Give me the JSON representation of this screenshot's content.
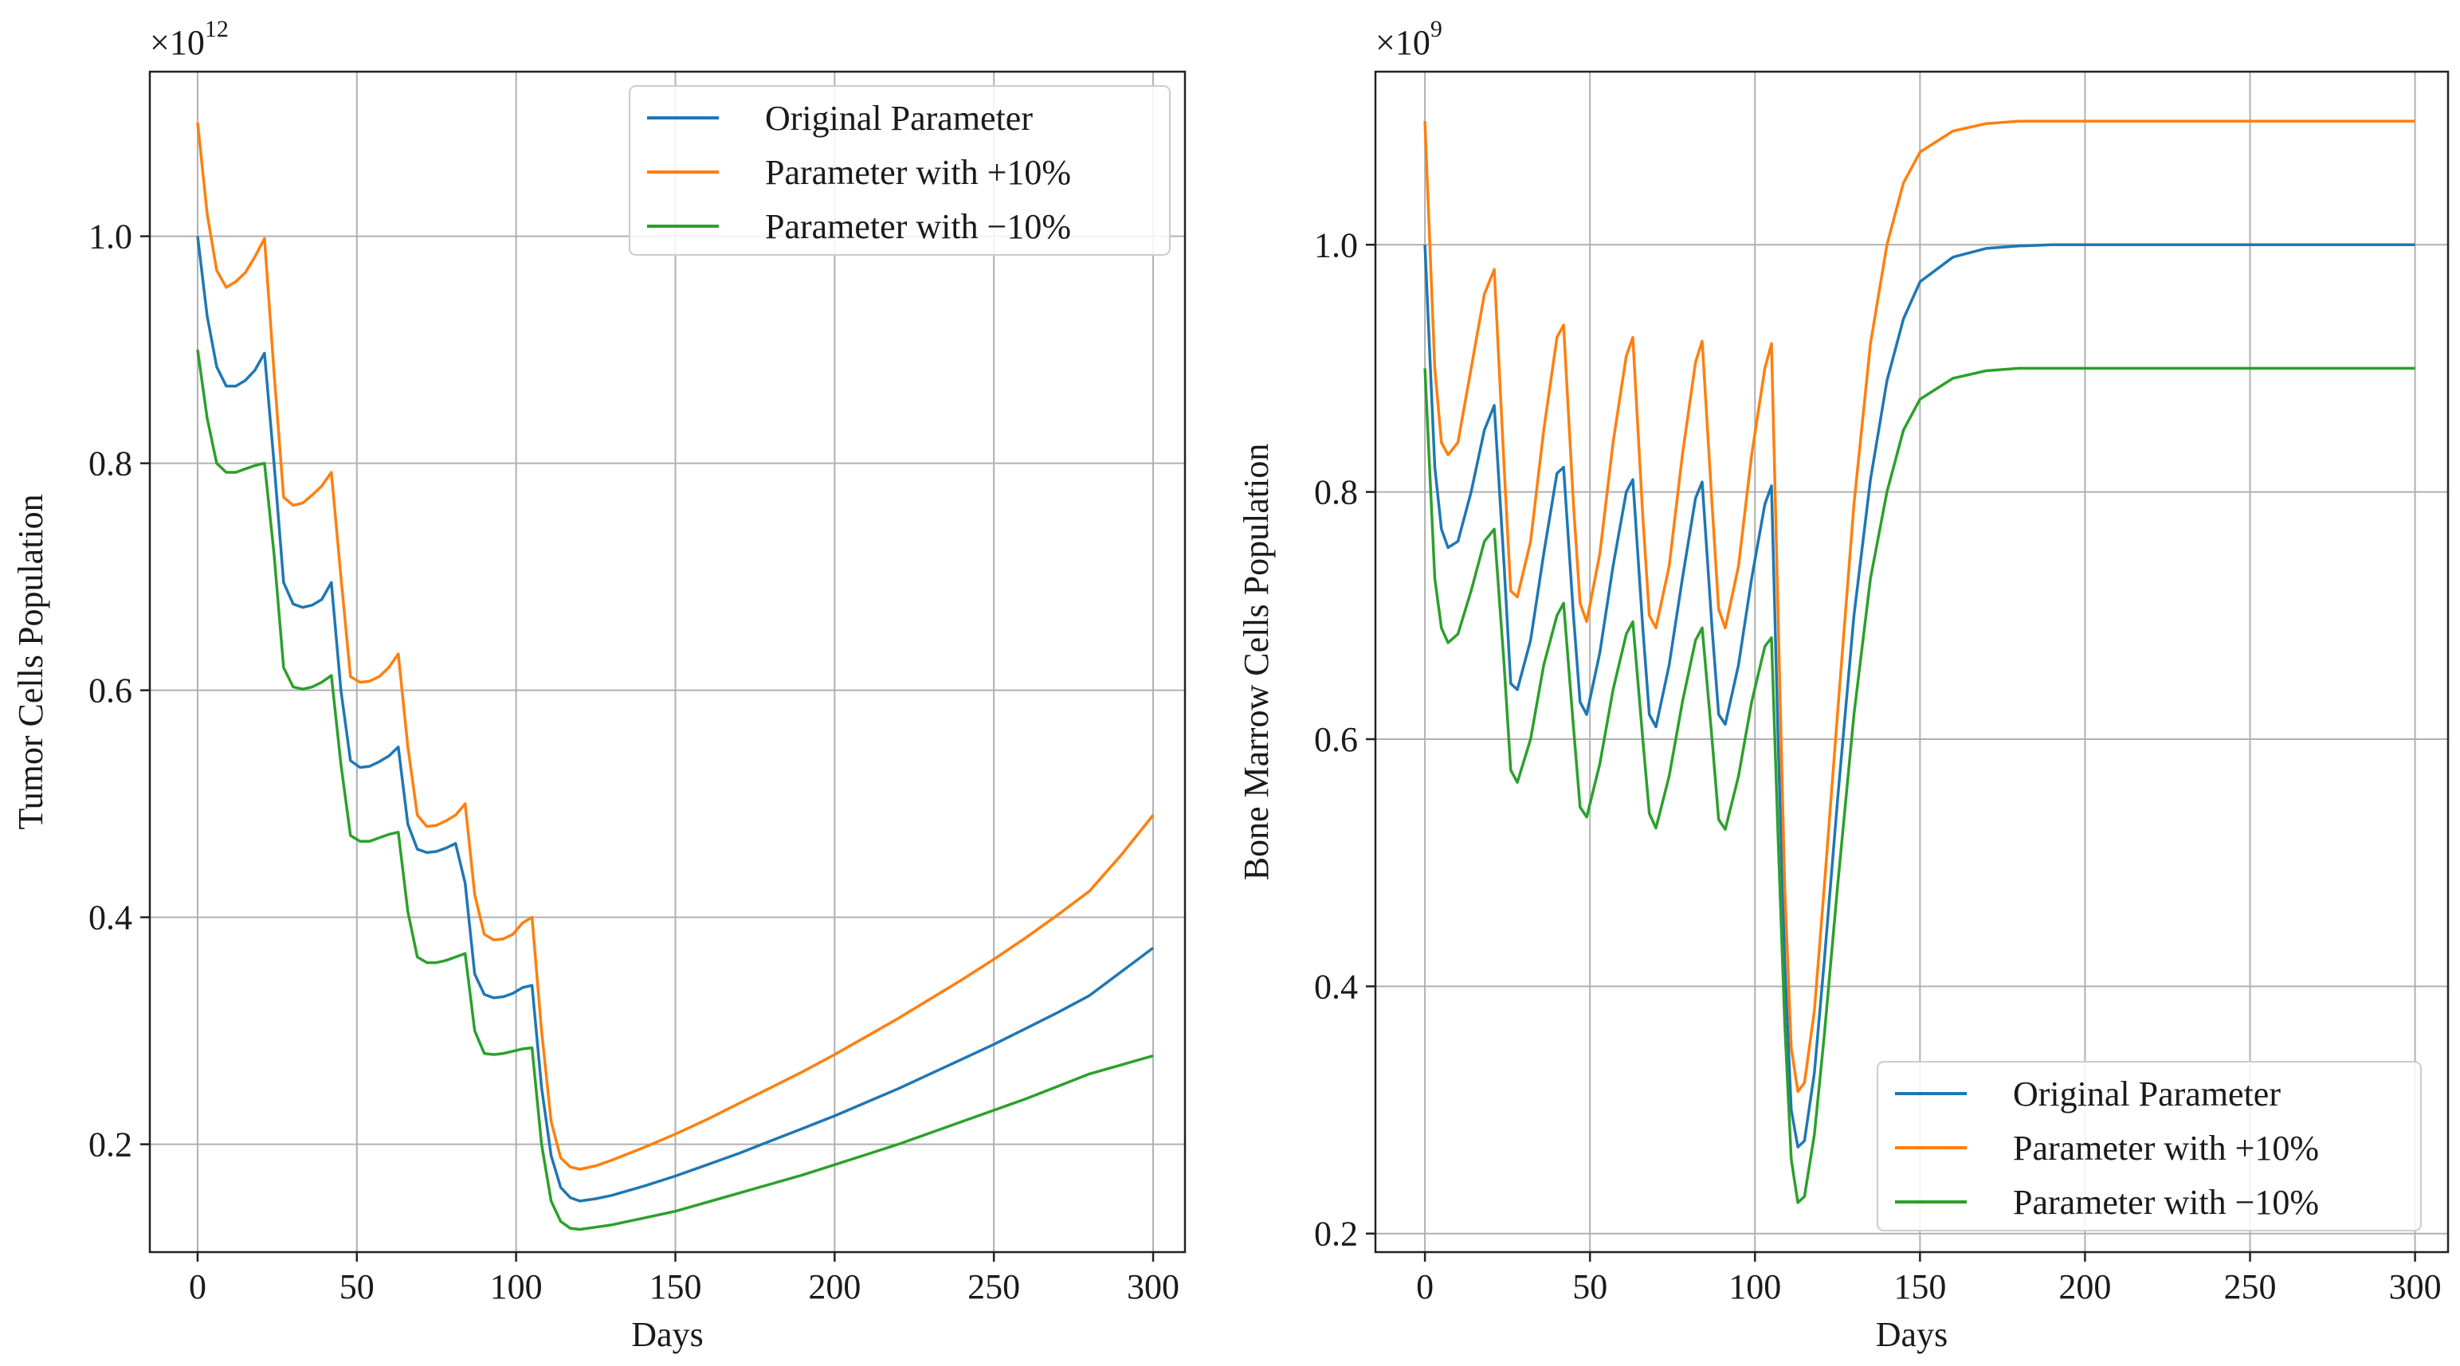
{
  "chart_data": [
    {
      "type": "line",
      "title": "",
      "xlabel": "Days",
      "ylabel": "Tumor Cells Population",
      "scale_label": "×10",
      "scale_exponent": "12",
      "xlim": [
        -15,
        310
      ],
      "ylim": [
        0.105,
        1.145
      ],
      "xticks": [
        0,
        50,
        100,
        150,
        200,
        250,
        300
      ],
      "xtick_labels": [
        "0",
        "50",
        "100",
        "150",
        "200",
        "250",
        "300"
      ],
      "yticks": [
        0.2,
        0.4,
        0.6,
        0.8,
        1.0
      ],
      "ytick_labels": [
        "0.2",
        "0.4",
        "0.6",
        "0.8",
        "1.0"
      ],
      "grid": true,
      "legend_position": "top-right",
      "series": [
        {
          "name": "Original Parameter",
          "color": "#1f77b4",
          "x": [
            0,
            3,
            6,
            9,
            12,
            15,
            18,
            21,
            24,
            27,
            30,
            33,
            36,
            39,
            42,
            45,
            48,
            51,
            54,
            57,
            60,
            63,
            66,
            69,
            72,
            75,
            78,
            81,
            84,
            87,
            90,
            93,
            96,
            99,
            102,
            105,
            108,
            111,
            114,
            117,
            120,
            125,
            130,
            140,
            150,
            160,
            170,
            180,
            190,
            200,
            210,
            220,
            230,
            240,
            250,
            260,
            270,
            280,
            290,
            300
          ],
          "y": [
            1.0,
            0.93,
            0.885,
            0.868,
            0.868,
            0.873,
            0.882,
            0.897,
            0.8,
            0.695,
            0.676,
            0.673,
            0.675,
            0.68,
            0.695,
            0.6,
            0.538,
            0.532,
            0.533,
            0.537,
            0.542,
            0.55,
            0.482,
            0.46,
            0.457,
            0.458,
            0.461,
            0.465,
            0.43,
            0.35,
            0.332,
            0.329,
            0.33,
            0.333,
            0.338,
            0.34,
            0.25,
            0.19,
            0.162,
            0.153,
            0.15,
            0.152,
            0.155,
            0.163,
            0.172,
            0.182,
            0.192,
            0.203,
            0.214,
            0.225,
            0.237,
            0.249,
            0.262,
            0.275,
            0.288,
            0.302,
            0.316,
            0.331,
            0.352,
            0.373
          ]
        },
        {
          "name": "Parameter with +10%",
          "color": "#ff7f0e",
          "x": [
            0,
            3,
            6,
            9,
            12,
            15,
            18,
            21,
            24,
            27,
            30,
            33,
            36,
            39,
            42,
            45,
            48,
            51,
            54,
            57,
            60,
            63,
            66,
            69,
            72,
            75,
            78,
            81,
            84,
            87,
            90,
            93,
            96,
            99,
            102,
            105,
            108,
            111,
            114,
            117,
            120,
            125,
            130,
            140,
            150,
            160,
            170,
            180,
            190,
            200,
            210,
            220,
            230,
            240,
            250,
            260,
            270,
            280,
            290,
            300
          ],
          "y": [
            1.1,
            1.02,
            0.97,
            0.955,
            0.96,
            0.968,
            0.982,
            0.998,
            0.88,
            0.77,
            0.763,
            0.765,
            0.772,
            0.78,
            0.792,
            0.7,
            0.612,
            0.607,
            0.608,
            0.612,
            0.62,
            0.632,
            0.55,
            0.49,
            0.48,
            0.481,
            0.485,
            0.49,
            0.5,
            0.42,
            0.385,
            0.38,
            0.381,
            0.385,
            0.395,
            0.4,
            0.3,
            0.22,
            0.188,
            0.18,
            0.178,
            0.181,
            0.186,
            0.197,
            0.209,
            0.222,
            0.236,
            0.25,
            0.264,
            0.279,
            0.295,
            0.311,
            0.328,
            0.345,
            0.363,
            0.382,
            0.402,
            0.423,
            0.455,
            0.49
          ]
        },
        {
          "name": "Parameter with −10%",
          "color": "#2ca02c",
          "x": [
            0,
            3,
            6,
            9,
            12,
            15,
            18,
            21,
            24,
            27,
            30,
            33,
            36,
            39,
            42,
            45,
            48,
            51,
            54,
            57,
            60,
            63,
            66,
            69,
            72,
            75,
            78,
            81,
            84,
            87,
            90,
            93,
            96,
            99,
            102,
            105,
            108,
            111,
            114,
            117,
            120,
            125,
            130,
            140,
            150,
            160,
            170,
            180,
            190,
            200,
            210,
            220,
            230,
            240,
            250,
            260,
            270,
            280,
            290,
            300
          ],
          "y": [
            0.9,
            0.84,
            0.8,
            0.792,
            0.792,
            0.795,
            0.798,
            0.8,
            0.72,
            0.62,
            0.603,
            0.601,
            0.603,
            0.607,
            0.613,
            0.535,
            0.472,
            0.467,
            0.467,
            0.47,
            0.473,
            0.475,
            0.405,
            0.365,
            0.36,
            0.36,
            0.362,
            0.365,
            0.368,
            0.3,
            0.28,
            0.279,
            0.28,
            0.282,
            0.284,
            0.285,
            0.2,
            0.15,
            0.132,
            0.126,
            0.125,
            0.127,
            0.129,
            0.135,
            0.141,
            0.149,
            0.157,
            0.165,
            0.173,
            0.182,
            0.191,
            0.2,
            0.21,
            0.22,
            0.23,
            0.24,
            0.251,
            0.262,
            0.27,
            0.278
          ]
        }
      ]
    },
    {
      "type": "line",
      "title": "",
      "xlabel": "Days",
      "ylabel": "Bone Marrow Cells Population",
      "scale_label": "×10",
      "scale_exponent": "9",
      "xlim": [
        -15,
        310
      ],
      "ylim": [
        0.185,
        1.14
      ],
      "xticks": [
        0,
        50,
        100,
        150,
        200,
        250,
        300
      ],
      "xtick_labels": [
        "0",
        "50",
        "100",
        "150",
        "200",
        "250",
        "300"
      ],
      "yticks": [
        0.2,
        0.4,
        0.6,
        0.8,
        1.0
      ],
      "ytick_labels": [
        "0.2",
        "0.4",
        "0.6",
        "0.8",
        "1.0"
      ],
      "grid": true,
      "legend_position": "bottom-right",
      "series": [
        {
          "name": "Original Parameter",
          "color": "#1f77b4",
          "x": [
            0,
            3,
            5,
            7,
            10,
            14,
            18,
            21,
            24,
            26,
            28,
            32,
            36,
            40,
            42,
            45,
            47,
            49,
            53,
            57,
            61,
            63,
            66,
            68,
            70,
            74,
            78,
            82,
            84,
            87,
            89,
            91,
            95,
            99,
            103,
            105,
            107,
            109,
            111,
            113,
            115,
            118,
            121,
            125,
            130,
            135,
            140,
            145,
            150,
            160,
            170,
            180,
            190,
            200,
            225,
            250,
            275,
            300
          ],
          "y": [
            1.0,
            0.82,
            0.77,
            0.755,
            0.76,
            0.8,
            0.85,
            0.87,
            0.74,
            0.645,
            0.64,
            0.68,
            0.75,
            0.815,
            0.82,
            0.7,
            0.63,
            0.62,
            0.67,
            0.74,
            0.8,
            0.81,
            0.69,
            0.62,
            0.61,
            0.66,
            0.73,
            0.795,
            0.808,
            0.69,
            0.62,
            0.612,
            0.66,
            0.73,
            0.79,
            0.805,
            0.6,
            0.42,
            0.3,
            0.27,
            0.275,
            0.33,
            0.42,
            0.55,
            0.7,
            0.81,
            0.89,
            0.94,
            0.97,
            0.99,
            0.997,
            0.999,
            1.0,
            1.0,
            1.0,
            1.0,
            1.0,
            1.0
          ]
        },
        {
          "name": "Parameter with +10%",
          "color": "#ff7f0e",
          "x": [
            0,
            3,
            5,
            7,
            10,
            14,
            18,
            21,
            24,
            26,
            28,
            32,
            36,
            40,
            42,
            45,
            47,
            49,
            53,
            57,
            61,
            63,
            66,
            68,
            70,
            74,
            78,
            82,
            84,
            87,
            89,
            91,
            95,
            99,
            103,
            105,
            107,
            109,
            111,
            113,
            115,
            118,
            121,
            125,
            130,
            135,
            140,
            145,
            150,
            160,
            170,
            180,
            190,
            200,
            225,
            250,
            275,
            300
          ],
          "y": [
            1.1,
            0.9,
            0.84,
            0.83,
            0.84,
            0.9,
            0.96,
            0.98,
            0.82,
            0.72,
            0.715,
            0.76,
            0.85,
            0.925,
            0.935,
            0.79,
            0.71,
            0.695,
            0.75,
            0.84,
            0.91,
            0.925,
            0.78,
            0.7,
            0.69,
            0.74,
            0.83,
            0.905,
            0.922,
            0.79,
            0.705,
            0.69,
            0.74,
            0.83,
            0.9,
            0.92,
            0.7,
            0.48,
            0.35,
            0.315,
            0.322,
            0.38,
            0.48,
            0.62,
            0.79,
            0.92,
            1.0,
            1.05,
            1.075,
            1.092,
            1.098,
            1.1,
            1.1,
            1.1,
            1.1,
            1.1,
            1.1,
            1.1
          ]
        },
        {
          "name": "Parameter with −10%",
          "color": "#2ca02c",
          "x": [
            0,
            3,
            5,
            7,
            10,
            14,
            18,
            21,
            24,
            26,
            28,
            32,
            36,
            40,
            42,
            45,
            47,
            49,
            53,
            57,
            61,
            63,
            66,
            68,
            70,
            74,
            78,
            82,
            84,
            87,
            89,
            91,
            95,
            99,
            103,
            105,
            107,
            109,
            111,
            113,
            115,
            118,
            121,
            125,
            130,
            135,
            140,
            145,
            150,
            160,
            170,
            180,
            190,
            200,
            225,
            250,
            275,
            300
          ],
          "y": [
            0.9,
            0.73,
            0.69,
            0.678,
            0.685,
            0.72,
            0.76,
            0.77,
            0.66,
            0.575,
            0.565,
            0.6,
            0.66,
            0.7,
            0.71,
            0.61,
            0.545,
            0.537,
            0.58,
            0.64,
            0.685,
            0.695,
            0.6,
            0.54,
            0.528,
            0.57,
            0.63,
            0.68,
            0.69,
            0.6,
            0.535,
            0.527,
            0.57,
            0.63,
            0.675,
            0.682,
            0.52,
            0.37,
            0.26,
            0.225,
            0.23,
            0.28,
            0.36,
            0.48,
            0.62,
            0.73,
            0.8,
            0.85,
            0.875,
            0.892,
            0.898,
            0.9,
            0.9,
            0.9,
            0.9,
            0.9,
            0.9,
            0.9
          ]
        }
      ]
    }
  ]
}
